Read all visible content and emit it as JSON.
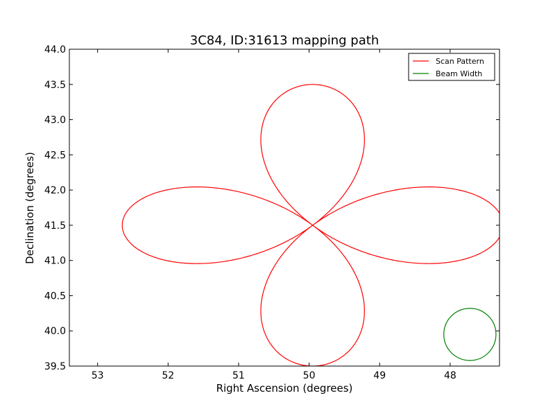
{
  "chart_data": {
    "type": "line",
    "title": "3C84, ID:31613 mapping path",
    "xlabel": "Right Ascension (degrees)",
    "ylabel": "Declination (degrees)",
    "xlim": [
      53.4,
      47.3
    ],
    "ylim": [
      39.5,
      44.0
    ],
    "x_inverted": true,
    "xticks": [
      53,
      52,
      51,
      50,
      49,
      48
    ],
    "yticks": [
      39.5,
      40.0,
      40.5,
      41.0,
      41.5,
      42.0,
      42.5,
      43.0,
      43.5,
      44.0
    ],
    "ytick_labels": [
      "39.5",
      "40.0",
      "40.5",
      "41.0",
      "41.5",
      "42.0",
      "42.5",
      "43.0",
      "43.5",
      "44.0"
    ],
    "grid": false,
    "legend_position": "top-right",
    "series": [
      {
        "name": "Scan Pattern",
        "color": "#ff0000",
        "pattern": "four-lobe rose",
        "center": [
          49.95,
          41.5
        ],
        "lobe_length_ra": 2.7,
        "lobe_length_dec": 2.0
      },
      {
        "name": "Beam Width",
        "color": "#008000",
        "pattern": "circle",
        "center": [
          47.72,
          39.95
        ],
        "radius_ra": 0.37,
        "radius_dec": 0.37
      }
    ]
  }
}
